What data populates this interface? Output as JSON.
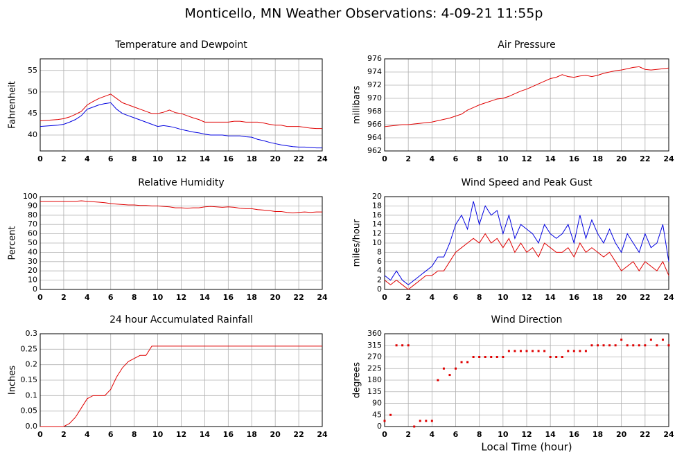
{
  "title": "Monticello, MN Weather Observations: 4-09-21 11:55p",
  "chart_data": [
    {
      "type": "line",
      "title": "Temperature and Dewpoint",
      "ylabel": "Fahrenheit",
      "x": [
        0,
        0.5,
        1,
        1.5,
        2,
        2.5,
        3,
        3.5,
        4,
        4.5,
        5,
        5.5,
        6,
        6.5,
        7,
        7.5,
        8,
        8.5,
        9,
        9.5,
        10,
        10.5,
        11,
        11.5,
        12,
        12.5,
        13,
        13.5,
        14,
        14.5,
        15,
        15.5,
        16,
        16.5,
        17,
        17.5,
        18,
        18.5,
        19,
        19.5,
        20,
        20.5,
        21,
        21.5,
        22,
        22.5,
        23,
        23.5,
        24
      ],
      "series": [
        {
          "color": "#e00000",
          "values": [
            43.3,
            43.4,
            43.5,
            43.6,
            43.8,
            44.2,
            44.8,
            45.5,
            47,
            47.8,
            48.5,
            49,
            49.5,
            48.5,
            47.5,
            47,
            46.5,
            46,
            45.5,
            45,
            45,
            45.3,
            45.8,
            45.2,
            45,
            44.5,
            44,
            43.6,
            43,
            43,
            43,
            43,
            43,
            43.2,
            43.2,
            43,
            43,
            43,
            42.8,
            42.5,
            42.3,
            42.3,
            42,
            42,
            42,
            41.8,
            41.6,
            41.5,
            41.5
          ]
        },
        {
          "color": "#0000e0",
          "values": [
            42,
            42.1,
            42.2,
            42.3,
            42.5,
            43,
            43.6,
            44.5,
            46,
            46.5,
            47,
            47.3,
            47.5,
            46,
            45,
            44.5,
            44,
            43.5,
            43,
            42.5,
            42,
            42.2,
            42,
            41.7,
            41.3,
            41,
            40.7,
            40.5,
            40.2,
            40,
            40,
            40,
            39.8,
            39.8,
            39.8,
            39.6,
            39.5,
            39,
            38.7,
            38.3,
            38,
            37.7,
            37.5,
            37.3,
            37.2,
            37.2,
            37.1,
            37,
            37
          ]
        }
      ],
      "xlim": [
        0,
        24
      ],
      "xticks": [
        0,
        2,
        4,
        6,
        8,
        10,
        12,
        14,
        16,
        18,
        20,
        22,
        24
      ],
      "ylim": [
        36.3,
        57.7
      ],
      "yticks": [
        40,
        45,
        50,
        55
      ],
      "grid": true
    },
    {
      "type": "line",
      "title": "Air Pressure",
      "ylabel": "millibars",
      "x": [
        0,
        0.5,
        1,
        1.5,
        2,
        2.5,
        3,
        3.5,
        4,
        4.5,
        5,
        5.5,
        6,
        6.5,
        7,
        7.5,
        8,
        8.5,
        9,
        9.5,
        10,
        10.5,
        11,
        11.5,
        12,
        12.5,
        13,
        13.5,
        14,
        14.5,
        15,
        15.5,
        16,
        16.5,
        17,
        17.5,
        18,
        18.5,
        19,
        19.5,
        20,
        20.5,
        21,
        21.5,
        22,
        22.5,
        23,
        23.5,
        24
      ],
      "series": [
        {
          "color": "#e00000",
          "values": [
            965.7,
            965.8,
            965.9,
            966,
            966,
            966.1,
            966.2,
            966.3,
            966.4,
            966.6,
            966.8,
            967,
            967.3,
            967.6,
            968.2,
            968.6,
            969,
            969.3,
            969.6,
            969.9,
            970,
            970.3,
            970.7,
            971.1,
            971.4,
            971.8,
            972.2,
            972.6,
            973,
            973.2,
            973.6,
            973.3,
            973.2,
            973.4,
            973.5,
            973.3,
            973.5,
            973.8,
            974,
            974.2,
            974.3,
            974.5,
            974.7,
            974.8,
            974.4,
            974.3,
            974.4,
            974.5,
            974.6
          ]
        }
      ],
      "xlim": [
        0,
        24
      ],
      "xticks": [
        0,
        2,
        4,
        6,
        8,
        10,
        12,
        14,
        16,
        18,
        20,
        22,
        24
      ],
      "ylim": [
        962,
        976
      ],
      "yticks": [
        962,
        964,
        966,
        968,
        970,
        972,
        974,
        976
      ],
      "grid": true
    },
    {
      "type": "line",
      "title": "Relative Humidity",
      "ylabel": "Percent",
      "x": [
        0,
        0.5,
        1,
        1.5,
        2,
        2.5,
        3,
        3.5,
        4,
        4.5,
        5,
        5.5,
        6,
        6.5,
        7,
        7.5,
        8,
        8.5,
        9,
        9.5,
        10,
        10.5,
        11,
        11.5,
        12,
        12.5,
        13,
        13.5,
        14,
        14.5,
        15,
        15.5,
        16,
        16.5,
        17,
        17.5,
        18,
        18.5,
        19,
        19.5,
        20,
        20.5,
        21,
        21.5,
        22,
        22.5,
        23,
        23.5,
        24
      ],
      "series": [
        {
          "color": "#e00000",
          "values": [
            95,
            95,
            95,
            95,
            95,
            95,
            95,
            95.5,
            95,
            94.5,
            94,
            93.5,
            92.5,
            92,
            91.5,
            91,
            91,
            90.5,
            90.5,
            90,
            90,
            89.5,
            89,
            88,
            88,
            87.5,
            88,
            88,
            89,
            89.5,
            89,
            88.5,
            89,
            88.5,
            87.5,
            87,
            87,
            86,
            85.5,
            85,
            84,
            84,
            83,
            82.5,
            83,
            83.5,
            83,
            83.5,
            83.5
          ]
        }
      ],
      "xlim": [
        0,
        24
      ],
      "xticks": [
        0,
        2,
        4,
        6,
        8,
        10,
        12,
        14,
        16,
        18,
        20,
        22,
        24
      ],
      "ylim": [
        0,
        100
      ],
      "yticks": [
        0,
        10,
        20,
        30,
        40,
        50,
        60,
        70,
        80,
        90,
        100
      ],
      "grid": true
    },
    {
      "type": "line",
      "title": "Wind Speed and Peak Gust",
      "ylabel": "miles/hour",
      "x": [
        0,
        0.5,
        1,
        1.5,
        2,
        2.5,
        3,
        3.5,
        4,
        4.5,
        5,
        5.5,
        6,
        6.5,
        7,
        7.5,
        8,
        8.5,
        9,
        9.5,
        10,
        10.5,
        11,
        11.5,
        12,
        12.5,
        13,
        13.5,
        14,
        14.5,
        15,
        15.5,
        16,
        16.5,
        17,
        17.5,
        18,
        18.5,
        19,
        19.5,
        20,
        20.5,
        21,
        21.5,
        22,
        22.5,
        23,
        23.5,
        24
      ],
      "series": [
        {
          "color": "#e00000",
          "values": [
            2,
            1,
            2,
            1,
            0,
            1,
            2,
            3,
            3,
            4,
            4,
            6,
            8,
            9,
            10,
            11,
            10,
            12,
            10,
            11,
            9,
            11,
            8,
            10,
            8,
            9,
            7,
            10,
            9,
            8,
            8,
            9,
            7,
            10,
            8,
            9,
            8,
            7,
            8,
            6,
            4,
            5,
            6,
            4,
            6,
            5,
            4,
            6,
            3
          ]
        },
        {
          "color": "#0000e0",
          "values": [
            3,
            2,
            4,
            2,
            1,
            2,
            3,
            4,
            5,
            7,
            7,
            10,
            14,
            16,
            13,
            19,
            14,
            18,
            16,
            17,
            12,
            16,
            11,
            14,
            13,
            12,
            10,
            14,
            12,
            11,
            12,
            14,
            10,
            16,
            11,
            15,
            12,
            10,
            13,
            10,
            8,
            12,
            10,
            8,
            12,
            9,
            10,
            14,
            6
          ]
        }
      ],
      "xlim": [
        0,
        24
      ],
      "xticks": [
        0,
        2,
        4,
        6,
        8,
        10,
        12,
        14,
        16,
        18,
        20,
        22,
        24
      ],
      "ylim": [
        0,
        20
      ],
      "yticks": [
        0,
        2,
        4,
        6,
        8,
        10,
        12,
        14,
        16,
        18,
        20
      ],
      "grid": true
    },
    {
      "type": "line",
      "title": "24 hour Accumulated Rainfall",
      "ylabel": "Inches",
      "x": [
        0,
        0.5,
        1,
        1.5,
        2,
        2.5,
        3,
        3.5,
        4,
        4.5,
        5,
        5.5,
        6,
        6.5,
        7,
        7.5,
        8,
        8.5,
        9,
        9.5,
        10,
        10.5,
        11,
        11.5,
        12,
        12.5,
        13,
        13.5,
        14,
        14.5,
        15,
        15.5,
        16,
        16.5,
        17,
        17.5,
        18,
        18.5,
        19,
        19.5,
        20,
        20.5,
        21,
        21.5,
        22,
        22.5,
        23,
        23.5,
        24
      ],
      "series": [
        {
          "color": "#e00000",
          "values": [
            0,
            0,
            0,
            0,
            0,
            0.01,
            0.03,
            0.06,
            0.09,
            0.1,
            0.1,
            0.1,
            0.12,
            0.16,
            0.19,
            0.21,
            0.22,
            0.23,
            0.23,
            0.26,
            0.26,
            0.26,
            0.26,
            0.26,
            0.26,
            0.26,
            0.26,
            0.26,
            0.26,
            0.26,
            0.26,
            0.26,
            0.26,
            0.26,
            0.26,
            0.26,
            0.26,
            0.26,
            0.26,
            0.26,
            0.26,
            0.26,
            0.26,
            0.26,
            0.26,
            0.26,
            0.26,
            0.26,
            0.26
          ]
        }
      ],
      "xlim": [
        0,
        24
      ],
      "xticks": [
        0,
        2,
        4,
        6,
        8,
        10,
        12,
        14,
        16,
        18,
        20,
        22,
        24
      ],
      "ylim": [
        0,
        0.3
      ],
      "yticks": [
        {
          "value": 0,
          "label": "0.0"
        },
        0.05,
        0.1,
        0.15,
        0.2,
        0.25,
        0.3
      ],
      "grid": true
    },
    {
      "type": "scatter",
      "title": "Wind Direction",
      "ylabel": "degrees",
      "xlabel": "Local Time (hour)",
      "x": [
        0,
        0.5,
        1,
        1.5,
        2,
        2.5,
        3,
        3.5,
        4,
        4.5,
        5,
        5.5,
        6,
        6.5,
        7,
        7.5,
        8,
        8.5,
        9,
        9.5,
        10,
        10.5,
        11,
        11.5,
        12,
        12.5,
        13,
        13.5,
        14,
        14.5,
        15,
        15.5,
        16,
        16.5,
        17,
        17.5,
        18,
        18.5,
        19,
        19.5,
        20,
        20.5,
        21,
        21.5,
        22,
        22.5,
        23,
        23.5,
        24
      ],
      "series": [
        {
          "color": "#e00000",
          "values": [
            22,
            45,
            315,
            315,
            315,
            0,
            22,
            22,
            22,
            180,
            225,
            200,
            225,
            250,
            250,
            270,
            270,
            270,
            270,
            270,
            270,
            293,
            293,
            293,
            293,
            293,
            293,
            293,
            270,
            270,
            270,
            293,
            293,
            293,
            293,
            315,
            315,
            315,
            315,
            315,
            337,
            315,
            315,
            315,
            315,
            337,
            315,
            337,
            315
          ]
        }
      ],
      "xlim": [
        0,
        24
      ],
      "xticks": [
        0,
        2,
        4,
        6,
        8,
        10,
        12,
        14,
        16,
        18,
        20,
        22,
        24
      ],
      "ylim": [
        0,
        360
      ],
      "yticks": [
        0,
        45,
        90,
        135,
        180,
        225,
        270,
        315,
        360
      ],
      "grid": true
    }
  ]
}
